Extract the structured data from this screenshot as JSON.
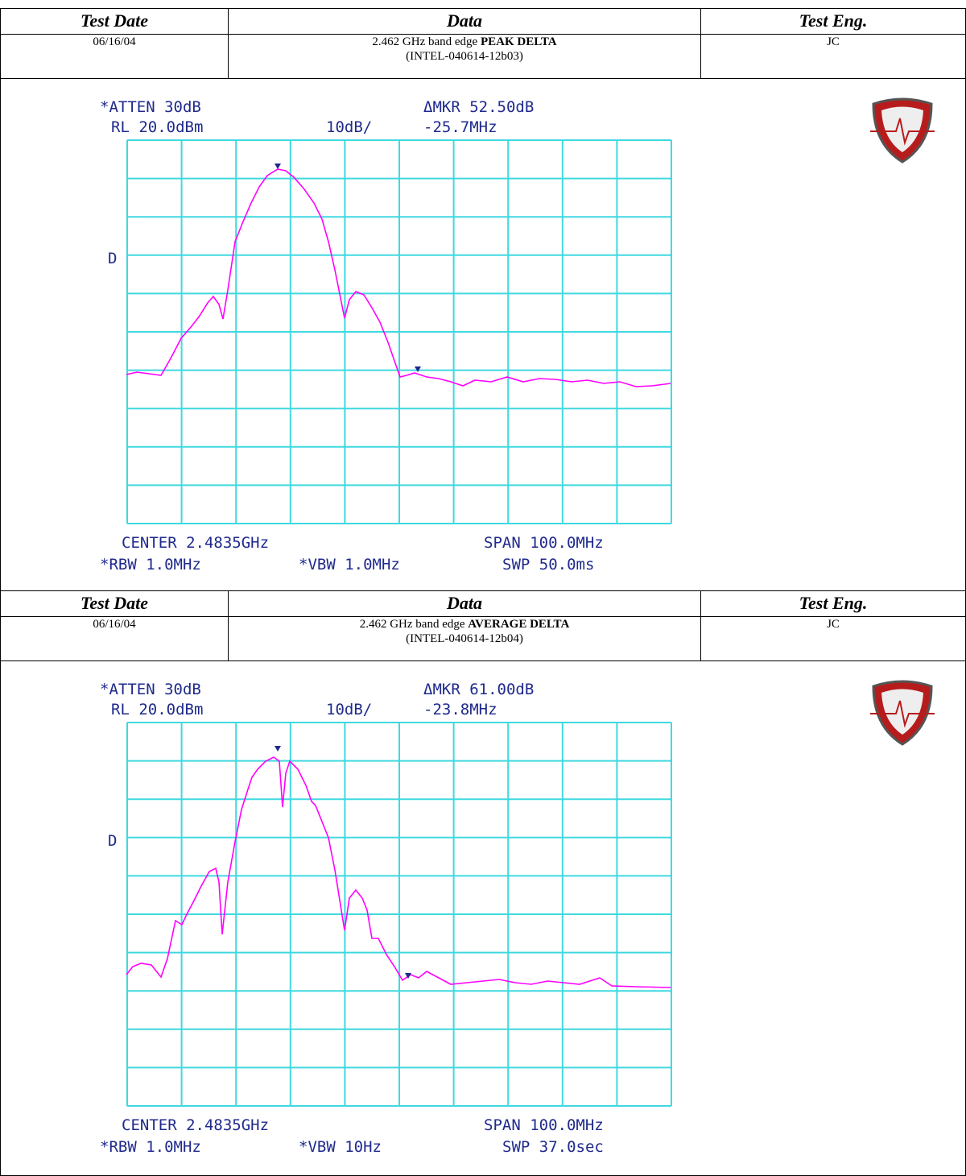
{
  "sections": [
    {
      "header": [
        "Test Date",
        "Data",
        "Test Eng."
      ],
      "date": "06/16/04",
      "data_prefix": "2.462 GHz band edge ",
      "data_bold": "PEAK DELTA",
      "data_id": "(INTEL-040614-12b03)",
      "engineer": "JC",
      "screen": {
        "atten": "*ATTEN 30dB",
        "rl": "RL 20.0dBm",
        "scale": "10dB/",
        "mkr": "ΔMKR 52.50dB",
        "mkr_freq": "-25.7MHz",
        "d": "D",
        "center": "CENTER 2.4835GHz",
        "span": "SPAN 100.0MHz",
        "rbw": "*RBW 1.0MHz",
        "vbw": "*VBW 1.0MHz",
        "swp": "SWP 50.0ms"
      }
    },
    {
      "header": [
        "Test Date",
        "Data",
        "Test Eng."
      ],
      "date": "06/16/04",
      "data_prefix": "2.462 GHz band edge ",
      "data_bold": "AVERAGE DELTA",
      "data_id": "(INTEL-040614-12b04)",
      "engineer": "JC",
      "screen": {
        "atten": "*ATTEN 30dB",
        "rl": "RL 20.0dBm",
        "scale": "10dB/",
        "mkr": "ΔMKR 61.00dB",
        "mkr_freq": "-23.8MHz",
        "d": "D",
        "center": "CENTER 2.4835GHz",
        "span": "SPAN 100.0MHz",
        "rbw": "*RBW 1.0MHz",
        "vbw": "*VBW 10Hz",
        "swp": "SWP 37.0sec"
      }
    }
  ]
}
